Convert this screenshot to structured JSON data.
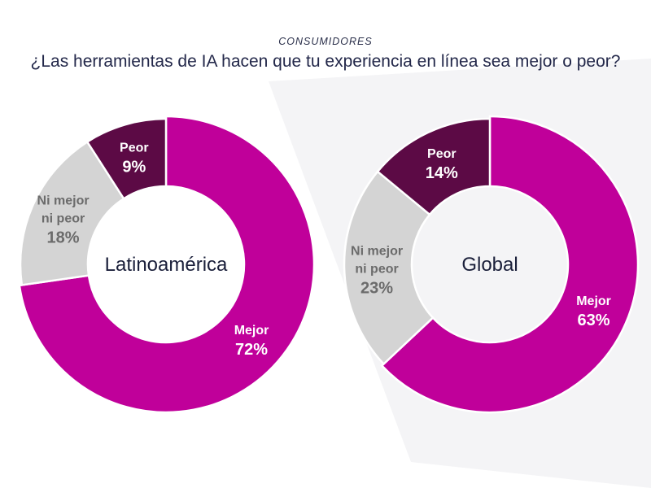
{
  "header": {
    "kicker": "CONSUMIDORES",
    "question": "¿Las herramientas de IA hacen que tu experiencia en línea sea mejor o peor?"
  },
  "colors": {
    "mejor": "#c0009a",
    "ni_mejor_ni_peor": "#d4d4d4",
    "peor": "#5c0a45",
    "background_panel": "#f4f4f6"
  },
  "chart_data": [
    {
      "type": "pie",
      "center_label": "Latinoamérica",
      "slices": [
        {
          "label_lines": [
            "Mejor"
          ],
          "value": 72,
          "value_text": "72%",
          "color": "#c0009a",
          "text_color": "#ffffff"
        },
        {
          "label_lines": [
            "Ni mejor",
            "ni peor"
          ],
          "value": 18,
          "value_text": "18%",
          "color": "#d4d4d4",
          "text_color": "#6b6b6b"
        },
        {
          "label_lines": [
            "Peor"
          ],
          "value": 9,
          "value_text": "9%",
          "color": "#5c0a45",
          "text_color": "#ffffff"
        }
      ]
    },
    {
      "type": "pie",
      "center_label": "Global",
      "slices": [
        {
          "label_lines": [
            "Mejor"
          ],
          "value": 63,
          "value_text": "63%",
          "color": "#c0009a",
          "text_color": "#ffffff"
        },
        {
          "label_lines": [
            "Ni mejor",
            "ni peor"
          ],
          "value": 23,
          "value_text": "23%",
          "color": "#d4d4d4",
          "text_color": "#6b6b6b"
        },
        {
          "label_lines": [
            "Peor"
          ],
          "value": 14,
          "value_text": "14%",
          "color": "#5c0a45",
          "text_color": "#ffffff"
        }
      ]
    }
  ]
}
